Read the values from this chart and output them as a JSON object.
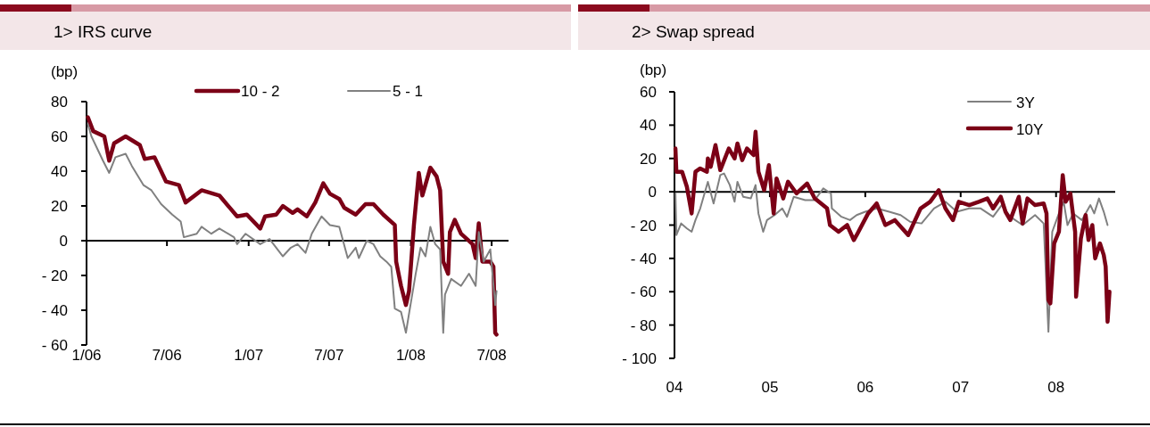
{
  "chart_data": [
    {
      "type": "line",
      "title": "1> IRS curve",
      "ylabel": "(bp)",
      "legend": "top",
      "xlim": [
        "2006-01-01",
        "2008-08-08"
      ],
      "xticks": [
        {
          "value": "2006-01",
          "label": "1/06"
        },
        {
          "value": "2006-07",
          "label": "7/06"
        },
        {
          "value": "2007-01",
          "label": "1/07"
        },
        {
          "value": "2007-07",
          "label": "7/07"
        },
        {
          "value": "2008-01",
          "label": "1/08"
        },
        {
          "value": "2008-07",
          "label": "7/08"
        }
      ],
      "ylim": [
        -60,
        80
      ],
      "yticks": [
        {
          "value": -60,
          "label": "- 60"
        },
        {
          "value": -40,
          "label": "- 40"
        },
        {
          "value": -20,
          "label": "- 20"
        },
        0,
        20,
        40,
        60,
        80
      ],
      "series": [
        {
          "name": "10 - 2",
          "color": "#7b0016",
          "x": [
            "2006-01-04",
            "2006-01-16",
            "2006-02-10",
            "2006-02-21",
            "2006-03-04",
            "2006-03-30",
            "2006-05-01",
            "2006-05-12",
            "2006-06-03",
            "2006-06-29",
            "2006-07-28",
            "2006-08-12",
            "2006-09-17",
            "2006-10-27",
            "2006-12-06",
            "2006-12-28",
            "2007-01-27",
            "2007-02-07",
            "2007-03-04",
            "2007-03-19",
            "2007-04-10",
            "2007-04-21",
            "2007-05-12",
            "2007-05-31",
            "2007-06-18",
            "2007-07-03",
            "2007-07-24",
            "2007-08-04",
            "2007-08-30",
            "2007-09-21",
            "2007-10-09",
            "2007-10-31",
            "2007-11-26",
            "2007-11-29",
            "2007-12-10",
            "2007-12-21",
            "2007-12-28",
            "2008-01-08",
            "2008-01-19",
            "2008-01-27",
            "2008-02-14",
            "2008-02-28",
            "2008-03-07",
            "2008-03-14",
            "2008-03-25",
            "2008-03-29",
            "2008-04-09",
            "2008-04-23",
            "2008-05-19",
            "2008-05-26",
            "2008-06-02",
            "2008-06-10",
            "2008-06-28",
            "2008-07-05",
            "2008-07-09",
            "2008-07-12"
          ],
          "values": [
            71,
            63,
            60,
            46,
            56,
            60,
            55,
            47,
            48,
            34,
            32,
            22,
            29,
            26,
            14,
            15,
            7,
            14,
            15,
            20,
            16,
            18,
            14,
            22,
            33,
            27,
            24,
            19,
            15,
            21,
            21,
            15,
            9,
            -12,
            -26,
            -37,
            -29,
            9,
            39,
            26,
            42,
            37,
            29,
            -12,
            -19,
            5,
            12,
            4,
            -2,
            -10,
            10,
            -12,
            -12,
            -15,
            -53,
            -54
          ]
        },
        {
          "name": "5 - 1",
          "color": "#808080",
          "x": [
            "2006-01-04",
            "2006-01-12",
            "2006-02-07",
            "2006-02-21",
            "2006-03-07",
            "2006-03-30",
            "2006-04-13",
            "2006-05-09",
            "2006-05-27",
            "2006-06-18",
            "2006-07-13",
            "2006-08-01",
            "2006-08-08",
            "2006-09-06",
            "2006-09-17",
            "2006-10-09",
            "2006-10-27",
            "2006-11-29",
            "2006-12-06",
            "2006-12-25",
            "2007-01-27",
            "2007-02-17",
            "2007-03-19",
            "2007-04-06",
            "2007-04-21",
            "2007-05-09",
            "2007-05-23",
            "2007-06-14",
            "2007-07-03",
            "2007-07-24",
            "2007-08-12",
            "2007-08-30",
            "2007-09-06",
            "2007-09-24",
            "2007-10-09",
            "2007-10-24",
            "2007-11-07",
            "2007-11-18",
            "2007-11-26",
            "2007-12-10",
            "2007-12-21",
            "2007-12-28",
            "2008-01-12",
            "2008-01-23",
            "2008-02-03",
            "2008-02-14",
            "2008-02-25",
            "2008-03-07",
            "2008-03-14",
            "2008-03-18",
            "2008-04-01",
            "2008-04-23",
            "2008-05-11",
            "2008-05-26",
            "2008-06-02",
            "2008-06-13",
            "2008-06-28",
            "2008-07-09",
            "2008-07-12"
          ],
          "values": [
            67,
            60,
            46,
            39,
            48,
            50,
            43,
            32,
            29,
            21,
            15,
            11,
            2,
            4,
            8,
            4,
            7,
            2,
            -2,
            4,
            -2,
            1,
            -9,
            -4,
            -2,
            -7,
            4,
            14,
            9,
            8,
            -10,
            -4,
            -10,
            0,
            -2,
            -9,
            -12,
            -15,
            -39,
            -41,
            -53,
            -42,
            -19,
            -4,
            -9,
            8,
            -2,
            -5,
            -53,
            -31,
            -22,
            -26,
            -19,
            -26,
            5,
            -12,
            -5,
            -37,
            -29
          ]
        }
      ]
    },
    {
      "type": "line",
      "title": "2> Swap spread",
      "ylabel": "(bp)",
      "legend": "top right",
      "xlim": [
        2004,
        2008.62
      ],
      "xticks": [
        {
          "value": 2004,
          "label": "04"
        },
        {
          "value": 2005,
          "label": "05"
        },
        {
          "value": 2006,
          "label": "06"
        },
        {
          "value": 2007,
          "label": "07"
        },
        {
          "value": 2008,
          "label": "08"
        }
      ],
      "ylim": [
        -100,
        60
      ],
      "yticks": [
        {
          "value": -100,
          "label": "- 100"
        },
        {
          "value": -80,
          "label": "- 80"
        },
        {
          "value": -60,
          "label": "- 60"
        },
        {
          "value": -40,
          "label": "- 40"
        },
        {
          "value": -20,
          "label": "- 20"
        },
        0,
        20,
        40,
        60
      ],
      "series": [
        {
          "name": "3Y",
          "color": "#808080",
          "x": [
            2004.01,
            2004.02,
            2004.07,
            2004.13,
            2004.18,
            2004.22,
            2004.27,
            2004.35,
            2004.41,
            2004.48,
            2004.52,
            2004.58,
            2004.63,
            2004.66,
            2004.72,
            2004.8,
            2004.85,
            2004.88,
            2004.93,
            2004.97,
            2005.05,
            2005.13,
            2005.18,
            2005.25,
            2005.37,
            2005.47,
            2005.56,
            2005.64,
            2005.65,
            2005.75,
            2005.84,
            2005.91,
            2006.0,
            2006.12,
            2006.25,
            2006.37,
            2006.47,
            2006.59,
            2006.72,
            2006.84,
            2006.96,
            2007.09,
            2007.21,
            2007.34,
            2007.43,
            2007.52,
            2007.65,
            2007.78,
            2007.87,
            2007.92,
            2007.96,
            2008.03,
            2008.08,
            2008.12,
            2008.18,
            2008.27,
            2008.36,
            2008.4,
            2008.45,
            2008.5,
            2008.54
          ],
          "values": [
            -1,
            -26,
            -19,
            -22,
            -24,
            -17,
            -10,
            6,
            -7,
            10,
            11,
            4,
            -6,
            6,
            -3,
            -4,
            4,
            -13,
            -24,
            -17,
            -14,
            -10,
            -15,
            -3,
            -5,
            -5,
            2,
            -1,
            -10,
            -15,
            -17,
            -14,
            -12,
            -10,
            -12,
            -14,
            -18,
            -19,
            -10,
            -6,
            -12,
            -10,
            -10,
            -15,
            -8,
            -15,
            -20,
            -14,
            -19,
            -84,
            -24,
            -13,
            -6,
            -20,
            -13,
            -17,
            -8,
            -13,
            -4,
            -12,
            -20
          ]
        },
        {
          "name": "10Y",
          "color": "#7b0016",
          "x": [
            2004.01,
            2004.02,
            2004.08,
            2004.13,
            2004.18,
            2004.22,
            2004.27,
            2004.34,
            2004.35,
            2004.38,
            2004.43,
            2004.48,
            2004.57,
            2004.63,
            2004.66,
            2004.71,
            2004.76,
            2004.83,
            2004.85,
            2004.88,
            2004.94,
            2004.99,
            2005.04,
            2005.07,
            2005.14,
            2005.19,
            2005.28,
            2005.39,
            2005.47,
            2005.6,
            2005.63,
            2005.72,
            2005.81,
            2005.88,
            2005.91,
            2006.03,
            2006.12,
            2006.21,
            2006.31,
            2006.45,
            2006.58,
            2006.68,
            2006.77,
            2006.84,
            2006.92,
            2006.98,
            2007.09,
            2007.19,
            2007.28,
            2007.34,
            2007.42,
            2007.47,
            2007.52,
            2007.61,
            2007.65,
            2007.7,
            2007.78,
            2007.87,
            2007.9,
            2007.92,
            2007.94,
            2007.98,
            2008.03,
            2008.07,
            2008.1,
            2008.15,
            2008.2,
            2008.21,
            2008.26,
            2008.31,
            2008.34,
            2008.38,
            2008.41,
            2008.46,
            2008.5,
            2008.52,
            2008.54,
            2008.56
          ],
          "values": [
            26,
            12,
            12,
            3,
            -13,
            12,
            14,
            12,
            20,
            15,
            28,
            13,
            26,
            20,
            29,
            19,
            26,
            22,
            36,
            12,
            1,
            16,
            -13,
            8,
            -4,
            6,
            -1,
            5,
            -4,
            -10,
            -20,
            -24,
            -20,
            -29,
            -26,
            -13,
            -7,
            -20,
            -17,
            -26,
            -10,
            -6,
            1,
            -10,
            -17,
            -6,
            -8,
            -6,
            -4,
            -10,
            -3,
            -12,
            -17,
            -3,
            -19,
            -4,
            -8,
            -7,
            -13,
            -65,
            -67,
            -31,
            -24,
            10,
            -6,
            -1,
            -24,
            -63,
            -28,
            -14,
            -29,
            -20,
            -40,
            -31,
            -38,
            -45,
            -78,
            -60
          ]
        }
      ]
    }
  ]
}
